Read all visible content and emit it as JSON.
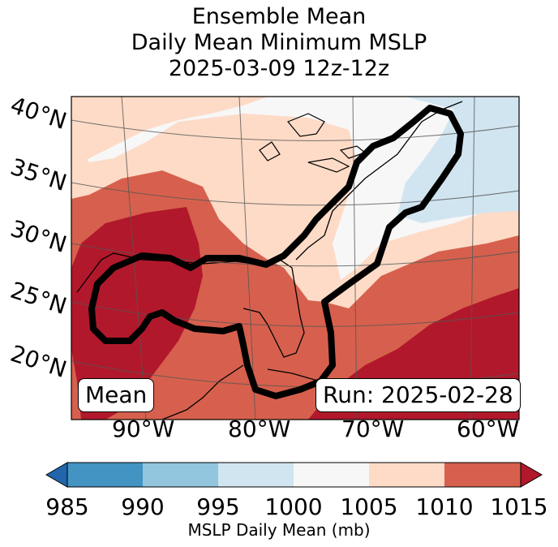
{
  "title": {
    "line1": "Ensemble Mean",
    "line2": "Daily Mean Minimum MSLP",
    "line3": "2025-03-09 12z-12z"
  },
  "lat_labels": [
    "40°N",
    "35°N",
    "30°N",
    "25°N",
    "20°N"
  ],
  "lon_labels": [
    "90°W",
    "80°W",
    "70°W",
    "60°W"
  ],
  "mean_box": "Mean",
  "run_box": "Run: 2025-02-28",
  "colorbar": {
    "ticks": [
      "985",
      "990",
      "995",
      "1000",
      "1005",
      "1010",
      "1015"
    ],
    "colors": [
      "#2166ac",
      "#4393c3",
      "#92c5de",
      "#d1e5f0",
      "#f7f7f7",
      "#fddbc7",
      "#d6604d",
      "#b2182b"
    ],
    "label": "MSLP Daily Mean (mb)"
  },
  "contour_level_mb": 1010
}
